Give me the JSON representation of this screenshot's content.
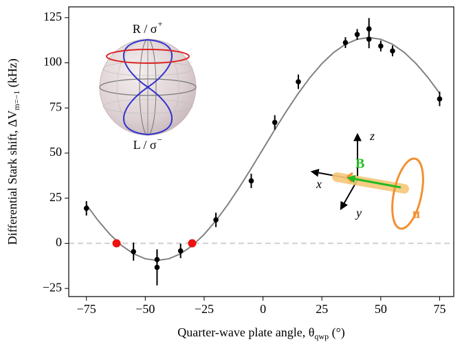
{
  "chart_data": {
    "type": "scatter",
    "xlabel": {
      "main": "Quarter-wave plate angle, θ",
      "sub": "qwp",
      "end": " (°)"
    },
    "ylabel": {
      "main": "Differential Stark shift, ΔV",
      "sub": "m=−1",
      "end": " (kHz)"
    },
    "xlim": [
      -82.5,
      81
    ],
    "ylim": [
      -29.5,
      131
    ],
    "xticks": [
      {
        "value": -75,
        "label": "−75"
      },
      {
        "value": -50,
        "label": "−50"
      },
      {
        "value": -25,
        "label": "−25"
      },
      0,
      25,
      50,
      75
    ],
    "yticks": [
      {
        "value": -25,
        "label": "−25"
      },
      0,
      25,
      50,
      75,
      100,
      125
    ],
    "reference_line": 0,
    "points": {
      "color": "#000000",
      "x": [
        -75,
        -55,
        -45,
        -45,
        -35,
        -20,
        -5,
        5,
        15,
        35,
        40,
        45,
        45,
        50,
        55,
        75
      ],
      "y": [
        19.4,
        -4.6,
        -9,
        -13.3,
        -4.2,
        13,
        34.6,
        67,
        89.5,
        111.2,
        115.7,
        118.8,
        113.1,
        109.3,
        106.6,
        80
      ],
      "yerr": [
        4,
        5,
        5,
        10,
        4,
        4,
        4,
        4,
        4,
        3,
        3,
        6,
        5,
        3,
        3,
        4
      ]
    },
    "fit": {
      "color": "#808080",
      "x": [
        -75,
        -70,
        -65,
        -60,
        -55,
        -50,
        -45,
        -40,
        -35,
        -30,
        -25,
        -20,
        -15,
        -10,
        -5,
        0,
        5,
        10,
        15,
        20,
        25,
        30,
        35,
        40,
        45,
        50,
        55,
        60,
        65,
        70,
        75
      ],
      "y": [
        21.38,
        12.56,
        4.95,
        -1.23,
        -5.78,
        -8.56,
        -9.5,
        -8.56,
        -5.78,
        -1.23,
        4.95,
        12.56,
        21.38,
        31.13,
        41.53,
        52.25,
        62.97,
        73.37,
        83.13,
        91.94,
        99.55,
        105.73,
        110.28,
        113.06,
        114,
        113.06,
        110.28,
        105.73,
        99.55,
        91.94,
        83.13
      ]
    },
    "zeros": {
      "color": "#ee1111",
      "x": [
        -62.2,
        -30.1
      ],
      "y": [
        0,
        0
      ]
    },
    "annotations": {
      "sphere_top": {
        "main": "R / σ",
        "sup": "+"
      },
      "sphere_bottom": {
        "main": "L / σ",
        "sup": "−"
      },
      "axis_z": "z",
      "axis_x": "x",
      "axis_y": "y",
      "field": "B",
      "polarization": "u"
    }
  }
}
